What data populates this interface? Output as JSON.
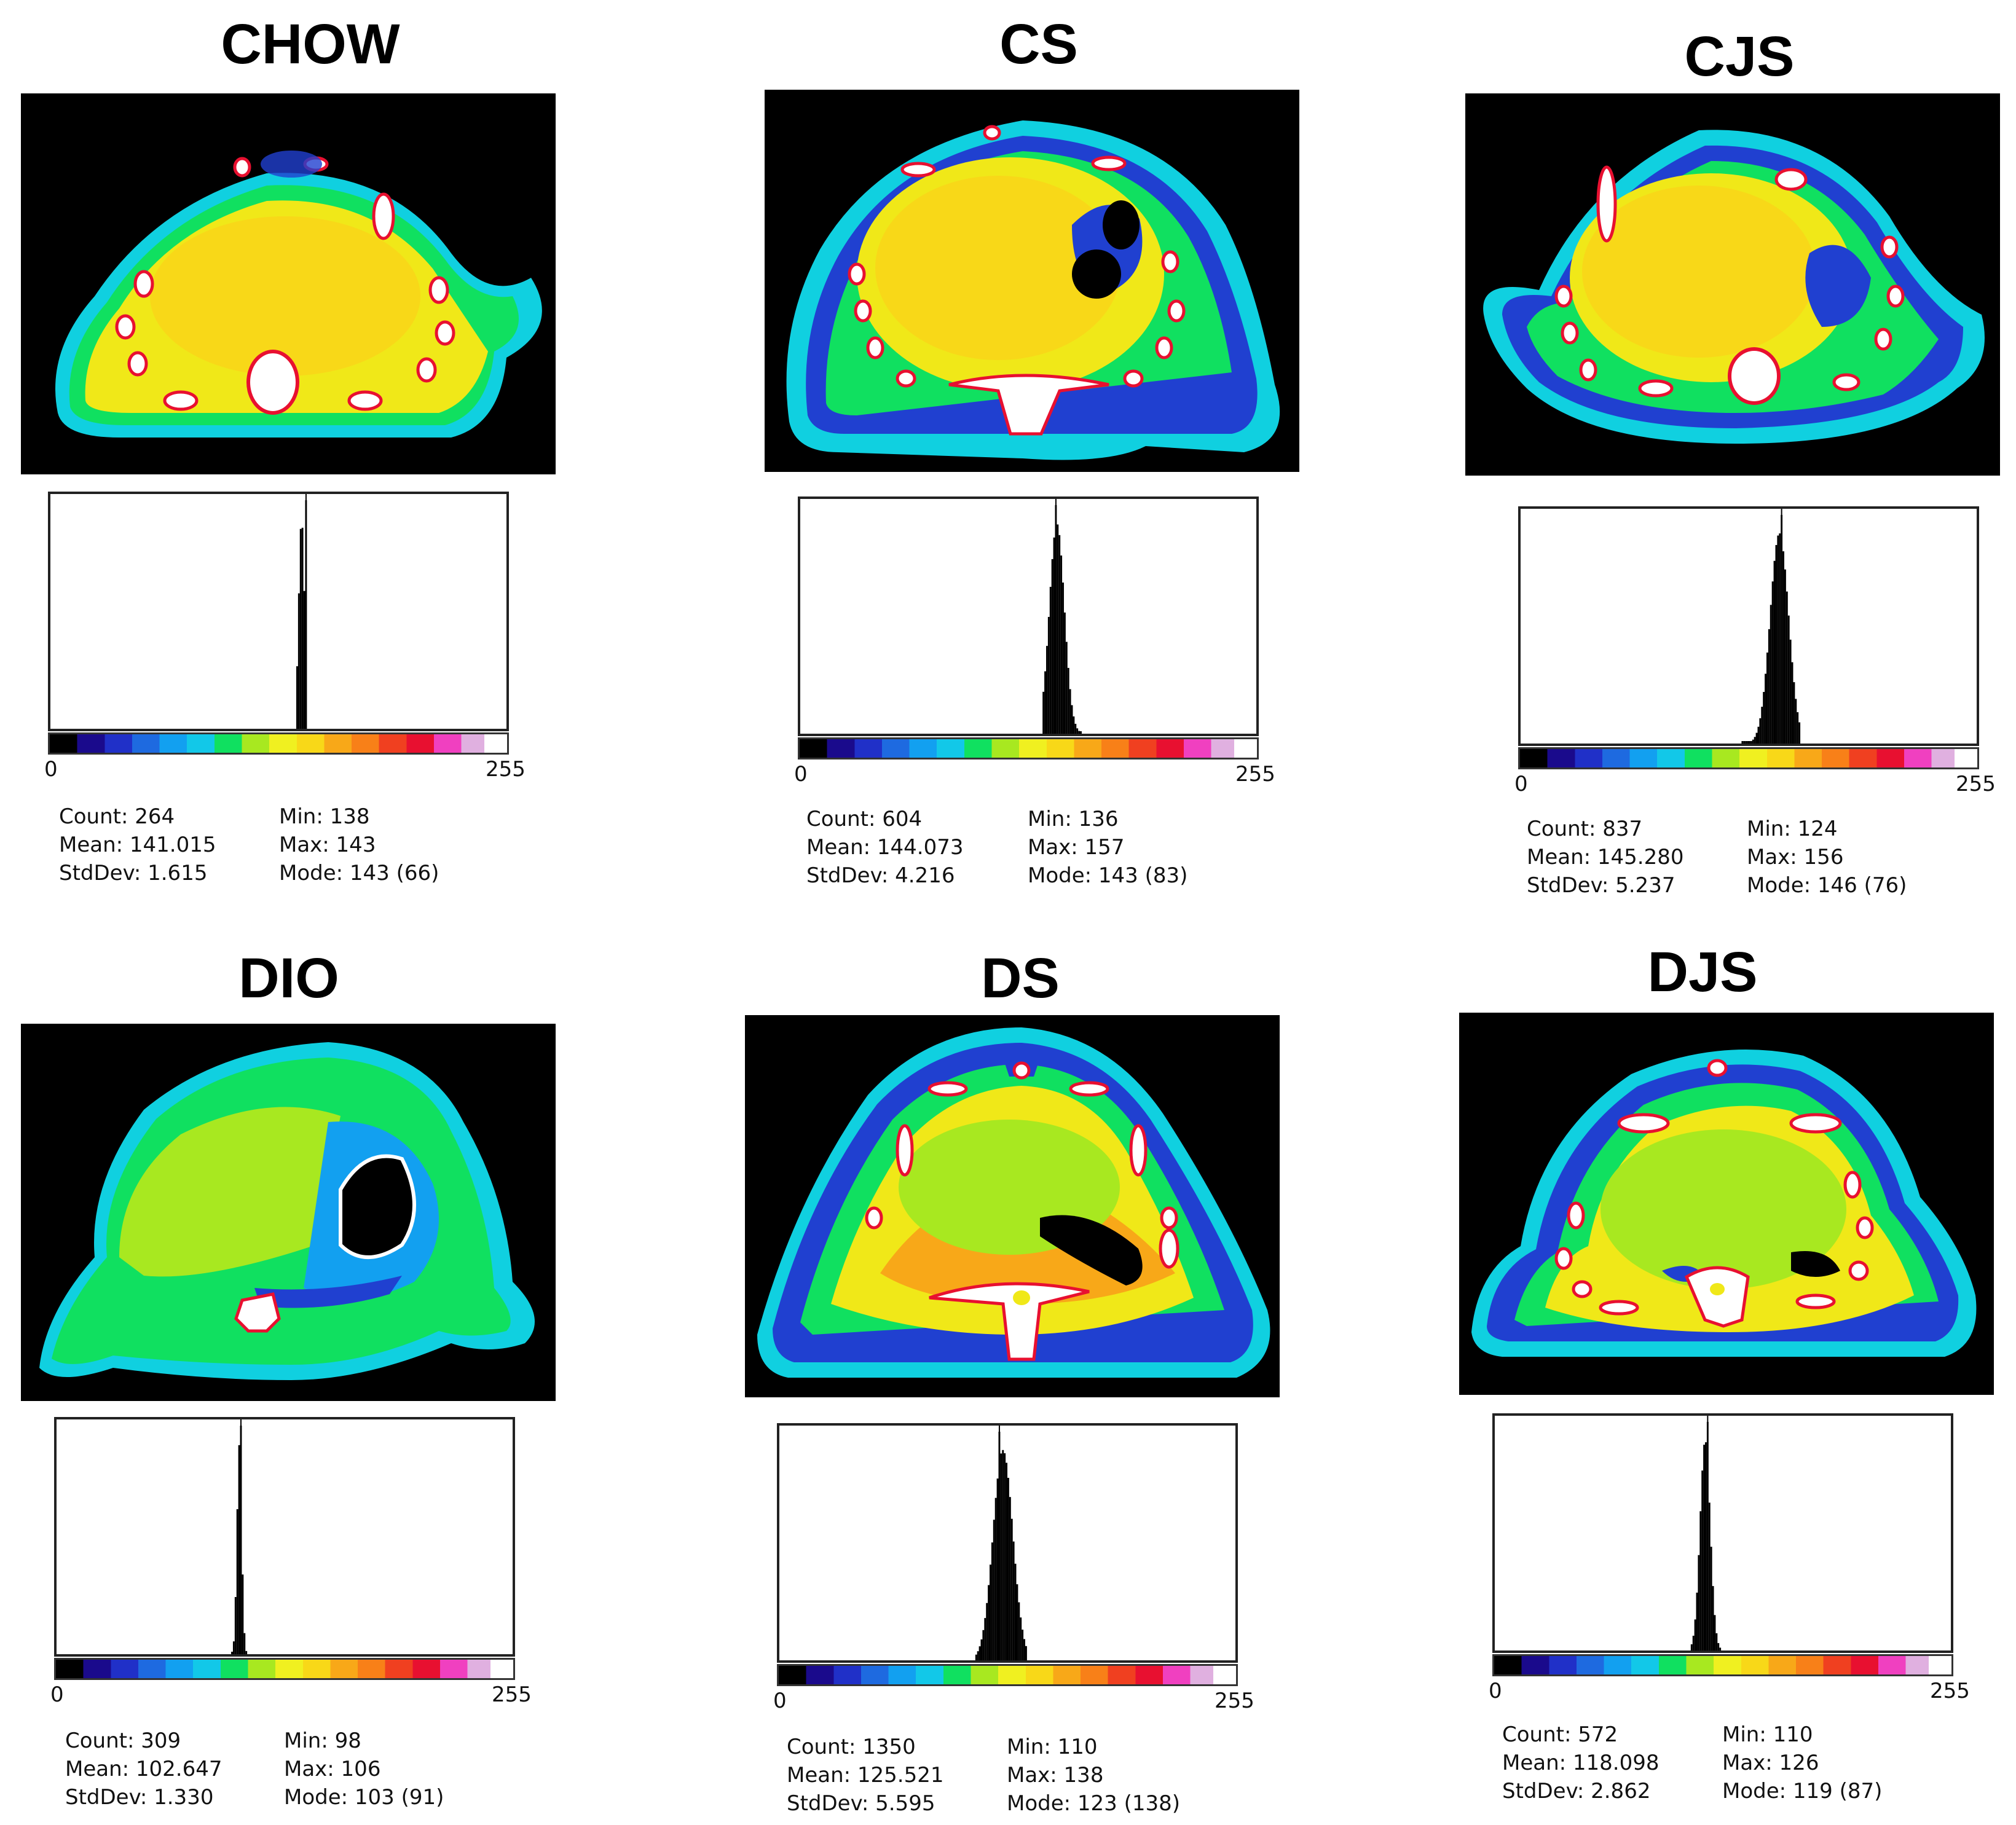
{
  "figure": {
    "panels": [
      {
        "id": "chow",
        "title": "CHOW",
        "axis_min": "0",
        "axis_max": "255",
        "stats": {
          "count": "Count: 264",
          "mean": "Mean: 141.015",
          "stddev": "StdDev: 1.615",
          "min": "Min: 138",
          "max": "Max: 143",
          "mode": "Mode: 143 (66)"
        },
        "histogram": {
          "count": 264,
          "mean": 141.015,
          "stddev": 1.615,
          "min": 138,
          "max": 143,
          "mode": 143
        }
      },
      {
        "id": "cs",
        "title": "CS",
        "axis_min": "0",
        "axis_max": "255",
        "stats": {
          "count": "Count: 604",
          "mean": "Mean: 144.073",
          "stddev": "StdDev: 4.216",
          "min": "Min: 136",
          "max": "Max: 157",
          "mode": "Mode: 143 (83)"
        },
        "histogram": {
          "count": 604,
          "mean": 144.073,
          "stddev": 4.216,
          "min": 136,
          "max": 157,
          "mode": 143
        }
      },
      {
        "id": "cjs",
        "title": "CJS",
        "axis_min": "0",
        "axis_max": "255",
        "stats": {
          "count": "Count: 837",
          "mean": "Mean: 145.280",
          "stddev": "StdDev: 5.237",
          "min": "Min: 124",
          "max": "Max: 156",
          "mode": "Mode: 146 (76)"
        },
        "histogram": {
          "count": 837,
          "mean": 145.28,
          "stddev": 5.237,
          "min": 124,
          "max": 156,
          "mode": 146
        }
      },
      {
        "id": "dio",
        "title": "DIO",
        "axis_min": "0",
        "axis_max": "255",
        "stats": {
          "count": "Count: 309",
          "mean": "Mean: 102.647",
          "stddev": "StdDev: 1.330",
          "min": "Min: 98",
          "max": "Max: 106",
          "mode": "Mode: 103 (91)"
        },
        "histogram": {
          "count": 309,
          "mean": 102.647,
          "stddev": 1.33,
          "min": 98,
          "max": 106,
          "mode": 103
        }
      },
      {
        "id": "ds",
        "title": "DS",
        "axis_min": "0",
        "axis_max": "255",
        "stats": {
          "count": "Count: 1350",
          "mean": "Mean: 125.521",
          "stddev": "StdDev: 5.595",
          "min": "Min: 110",
          "max": "Max: 138",
          "mode": "Mode: 123 (138)"
        },
        "histogram": {
          "count": 1350,
          "mean": 125.521,
          "stddev": 5.595,
          "min": 110,
          "max": 138,
          "mode": 123
        }
      },
      {
        "id": "djs",
        "title": "DJS",
        "axis_min": "0",
        "axis_max": "255",
        "stats": {
          "count": "Count: 572",
          "mean": "Mean: 118.098",
          "stddev": "StdDev: 2.862",
          "min": "Min: 110",
          "max": "Max: 126",
          "mode": "Mode: 119 (87)"
        },
        "histogram": {
          "count": 572,
          "mean": 118.098,
          "stddev": 2.862,
          "min": 110,
          "max": 126,
          "mode": 119
        }
      }
    ]
  },
  "colors": {
    "background": "#000000",
    "fat": "#2040d0",
    "lean": "#f0e818",
    "bone": "#ffffff",
    "rim": "#e81030",
    "outline": "#10d0e0"
  }
}
